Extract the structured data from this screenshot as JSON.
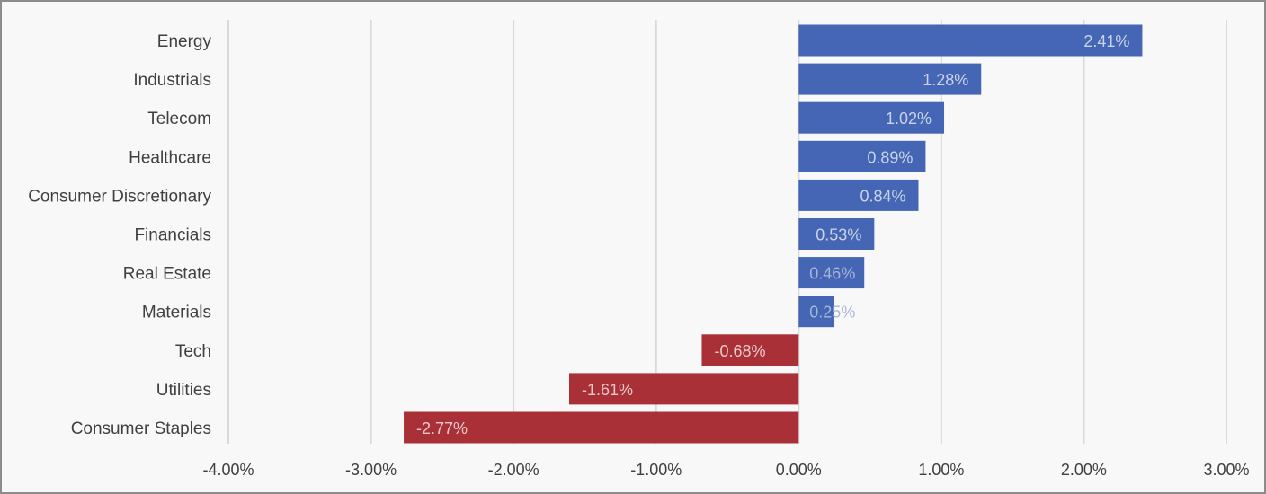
{
  "chart_data": {
    "type": "bar",
    "orientation": "horizontal",
    "categories": [
      "Energy",
      "Industrials",
      "Telecom",
      "Healthcare",
      "Consumer Discretionary",
      "Financials",
      "Real Estate",
      "Materials",
      "Tech",
      "Utilities",
      "Consumer Staples"
    ],
    "values": [
      2.41,
      1.28,
      1.02,
      0.89,
      0.84,
      0.53,
      0.46,
      0.25,
      -0.68,
      -1.61,
      -2.77
    ],
    "data_labels": [
      "2.41%",
      "1.28%",
      "1.02%",
      "0.89%",
      "0.84%",
      "0.53%",
      "0.46%",
      "0.25%",
      "-0.68%",
      "-1.61%",
      "-2.77%"
    ],
    "x_ticks": [
      -4,
      -3,
      -2,
      -1,
      0,
      1,
      2,
      3
    ],
    "x_tick_labels": [
      "-4.00%",
      "-3.00%",
      "-2.00%",
      "-1.00%",
      "0.00%",
      "1.00%",
      "2.00%",
      "3.00%"
    ],
    "xlim": [
      -4,
      3
    ],
    "grid": "vertical",
    "legend": "none",
    "colors": {
      "positive": "#4466b4",
      "negative": "#aa3038",
      "grid": "#d9d9d9",
      "positive_label": "#c9d3ea",
      "negative_label": "#ecc9cc"
    }
  }
}
